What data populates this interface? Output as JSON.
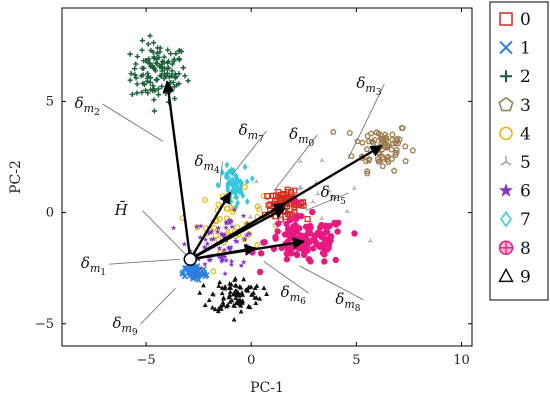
{
  "chart_data": {
    "type": "scatter",
    "xlabel": "PC-1",
    "ylabel": "PC-2",
    "xlim": [
      -9,
      10.5
    ],
    "ylim": [
      -6,
      9.2
    ],
    "xticks": [
      -5,
      0,
      5,
      10
    ],
    "yticks": [
      -5,
      0,
      5
    ],
    "grid": false,
    "legend_position": "outside-right",
    "series": [
      {
        "name": "0",
        "marker": "square-open",
        "color": "#d62c1c",
        "center": [
          1.6,
          0.4
        ],
        "spread": [
          0.8,
          0.45
        ],
        "count": 70,
        "shape": "open"
      },
      {
        "name": "1",
        "marker": "x",
        "color": "#2c7fdc",
        "center": [
          -2.7,
          -2.7
        ],
        "spread": [
          0.45,
          0.3
        ],
        "count": 60,
        "shape": "x"
      },
      {
        "name": "2",
        "marker": "plus",
        "color": "#1a5e3a",
        "center": [
          -4.4,
          6.3
        ],
        "spread": [
          1.1,
          1.1
        ],
        "count": 120,
        "shape": "plus"
      },
      {
        "name": "3",
        "marker": "pentagon-open",
        "color": "#9c7a4c",
        "center": [
          6.2,
          3.0
        ],
        "spread": [
          1.1,
          0.9
        ],
        "count": 70,
        "shape": "open"
      },
      {
        "name": "4",
        "marker": "circle-open",
        "color": "#e3b800",
        "center": [
          -1.0,
          -0.4
        ],
        "spread": [
          1.3,
          1.1
        ],
        "count": 45,
        "shape": "open"
      },
      {
        "name": "5",
        "marker": "tri-star",
        "color": "#a6a6a6",
        "center": [
          2.4,
          0.4
        ],
        "spread": [
          2.0,
          1.4
        ],
        "count": 30,
        "shape": "tri"
      },
      {
        "name": "6",
        "marker": "star",
        "color": "#8a34c6",
        "center": [
          -1.3,
          -1.3
        ],
        "spread": [
          1.4,
          1.0
        ],
        "count": 70,
        "shape": "star"
      },
      {
        "name": "7",
        "marker": "diamond-open",
        "color": "#35c8de",
        "center": [
          -0.9,
          1.2
        ],
        "spread": [
          0.5,
          0.7
        ],
        "count": 60,
        "shape": "diamond"
      },
      {
        "name": "8",
        "marker": "circle-plus",
        "color": "#e8197f",
        "center": [
          2.6,
          -1.3
        ],
        "spread": [
          1.6,
          0.9
        ],
        "count": 120,
        "shape": "filled"
      },
      {
        "name": "9",
        "marker": "triangle",
        "color": "#111111",
        "center": [
          -0.7,
          -3.7
        ],
        "spread": [
          1.0,
          0.65
        ],
        "count": 90,
        "shape": "triangle"
      }
    ],
    "origin": [
      -2.9,
      -2.1
    ],
    "arrows": [
      {
        "to": [
          -4.0,
          5.9
        ]
      },
      {
        "to": [
          -1.0,
          0.9
        ]
      },
      {
        "to": [
          1.6,
          0.4
        ]
      },
      {
        "to": [
          1.6,
          0.2
        ]
      },
      {
        "to": [
          6.2,
          3.0
        ]
      },
      {
        "to": [
          2.5,
          -1.3
        ]
      },
      {
        "to": [
          0.2,
          -1.6
        ]
      }
    ],
    "annotations": [
      {
        "base": "δ",
        "sub": "m",
        "subsub": "2",
        "at": [
          -8.4,
          4.7
        ],
        "leader_to": [
          -4.2,
          3.2
        ]
      },
      {
        "base": "δ",
        "sub": "m",
        "subsub": "7",
        "at": [
          -0.6,
          3.5
        ],
        "leader_to": [
          -0.9,
          1.7
        ]
      },
      {
        "base": "δ",
        "sub": "m",
        "subsub": "0",
        "at": [
          1.8,
          3.3
        ],
        "leader_to": [
          1.1,
          1.0
        ]
      },
      {
        "base": "δ",
        "sub": "m",
        "subsub": "3",
        "at": [
          5.0,
          5.6
        ],
        "leader_to": [
          4.6,
          2.4
        ]
      },
      {
        "base": "δ",
        "sub": "m",
        "subsub": "4",
        "at": [
          -2.7,
          2.1
        ],
        "leader_to": [
          -1.5,
          1.1
        ]
      },
      {
        "base": "δ",
        "sub": "m",
        "subsub": "5",
        "at": [
          3.3,
          0.7
        ],
        "leader_to": [
          2.6,
          0.1
        ]
      },
      {
        "base": "H̄",
        "sub": "",
        "subsub": "",
        "at": [
          -6.5,
          -0.1
        ],
        "leader_to": [
          -3.1,
          -1.9
        ],
        "calligraphic": true
      },
      {
        "base": "δ",
        "sub": "m",
        "subsub": "1",
        "at": [
          -8.1,
          -2.5
        ],
        "leader_to": [
          -3.4,
          -2.1
        ]
      },
      {
        "base": "δ",
        "sub": "m",
        "subsub": "6",
        "at": [
          1.4,
          -3.8
        ],
        "leader_to": [
          0.6,
          -2.2
        ]
      },
      {
        "base": "δ",
        "sub": "m",
        "subsub": "8",
        "at": [
          4.0,
          -4.1
        ],
        "leader_to": [
          2.3,
          -2.4
        ]
      },
      {
        "base": "δ",
        "sub": "m",
        "subsub": "9",
        "at": [
          -6.6,
          -5.2
        ],
        "leader_to": [
          -3.6,
          -3.4
        ]
      }
    ]
  }
}
